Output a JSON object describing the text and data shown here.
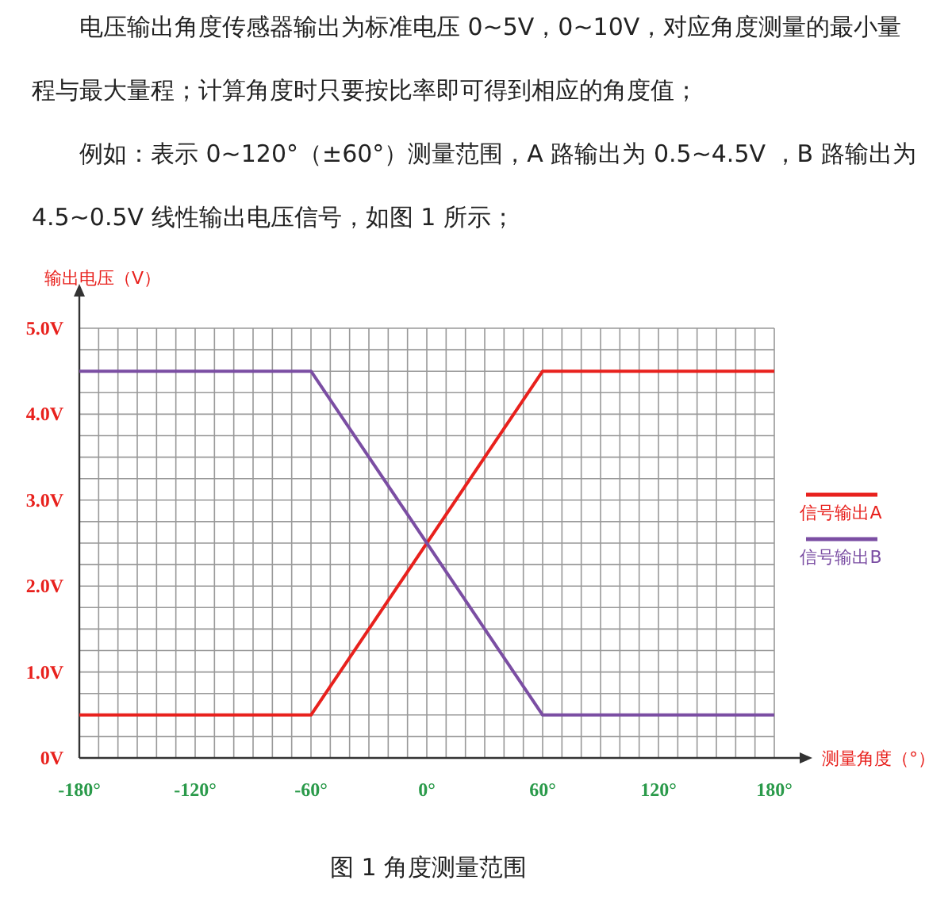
{
  "chart_data": {
    "type": "line",
    "title": "图 1 角度测量范围",
    "annotations": [
      "电压输出角度传感器输出为标准电压 0~5V，0~10V，对应角度测量的最小量程与最大量程；计算角度时只要按比率即可得到相应的角度值；",
      "例如：表示 0~120°（±60°）测量范围，A 路输出为 0.5~4.5V ，B 路输出为 4.5~0.5V 线性输出电压信号，如图 1 所示；"
    ],
    "xlabel": "测量角度（°）",
    "ylabel": "输出电压（V）",
    "x": [
      -180,
      -60,
      60,
      180
    ],
    "series": [
      {
        "name": "信号输出A",
        "color": "#e8211d",
        "values": [
          0.5,
          0.5,
          4.5,
          4.5
        ]
      },
      {
        "name": "信号输出B",
        "color": "#7b4ea3",
        "values": [
          4.5,
          4.5,
          0.5,
          0.5
        ]
      }
    ],
    "xlim": [
      -180,
      180
    ],
    "ylim": [
      0,
      5
    ],
    "xticks": [
      {
        "value": -180,
        "label": "-180°"
      },
      {
        "value": -170,
        "label": null
      },
      {
        "value": -160,
        "label": null
      },
      {
        "value": -150,
        "label": null
      },
      {
        "value": -140,
        "label": null
      },
      {
        "value": -130,
        "label": null
      },
      {
        "value": -120,
        "label": "-120°"
      },
      {
        "value": -110,
        "label": null
      },
      {
        "value": -100,
        "label": null
      },
      {
        "value": -90,
        "label": null
      },
      {
        "value": -80,
        "label": null
      },
      {
        "value": -70,
        "label": null
      },
      {
        "value": -60,
        "label": "-60°"
      },
      {
        "value": -50,
        "label": null
      },
      {
        "value": -40,
        "label": null
      },
      {
        "value": -30,
        "label": null
      },
      {
        "value": -20,
        "label": null
      },
      {
        "value": -10,
        "label": null
      },
      {
        "value": 0,
        "label": "0°"
      },
      {
        "value": 10,
        "label": null
      },
      {
        "value": 20,
        "label": null
      },
      {
        "value": 30,
        "label": null
      },
      {
        "value": 40,
        "label": null
      },
      {
        "value": 50,
        "label": null
      },
      {
        "value": 60,
        "label": "60°"
      },
      {
        "value": 70,
        "label": null
      },
      {
        "value": 80,
        "label": null
      },
      {
        "value": 90,
        "label": null
      },
      {
        "value": 100,
        "label": null
      },
      {
        "value": 110,
        "label": null
      },
      {
        "value": 120,
        "label": "120°"
      },
      {
        "value": 130,
        "label": null
      },
      {
        "value": 140,
        "label": null
      },
      {
        "value": 150,
        "label": null
      },
      {
        "value": 160,
        "label": null
      },
      {
        "value": 170,
        "label": null
      },
      {
        "value": 180,
        "label": "180°"
      }
    ],
    "yticks": [
      {
        "value": 0,
        "label": "0V"
      },
      {
        "value": 0.25,
        "label": null
      },
      {
        "value": 0.5,
        "label": null
      },
      {
        "value": 0.75,
        "label": null
      },
      {
        "value": 1,
        "label": "1.0V"
      },
      {
        "value": 1.25,
        "label": null
      },
      {
        "value": 1.5,
        "label": null
      },
      {
        "value": 1.75,
        "label": null
      },
      {
        "value": 2,
        "label": "2.0V"
      },
      {
        "value": 2.25,
        "label": null
      },
      {
        "value": 2.5,
        "label": null
      },
      {
        "value": 2.75,
        "label": null
      },
      {
        "value": 3,
        "label": "3.0V"
      },
      {
        "value": 3.25,
        "label": null
      },
      {
        "value": 3.5,
        "label": null
      },
      {
        "value": 3.75,
        "label": null
      },
      {
        "value": 4,
        "label": "4.0V"
      },
      {
        "value": 4.25,
        "label": null
      },
      {
        "value": 4.5,
        "label": null
      },
      {
        "value": 4.75,
        "label": null
      },
      {
        "value": 5,
        "label": "5.0V"
      }
    ],
    "grid": true,
    "legend": "right",
    "marker": "none",
    "line_style": "solid"
  }
}
